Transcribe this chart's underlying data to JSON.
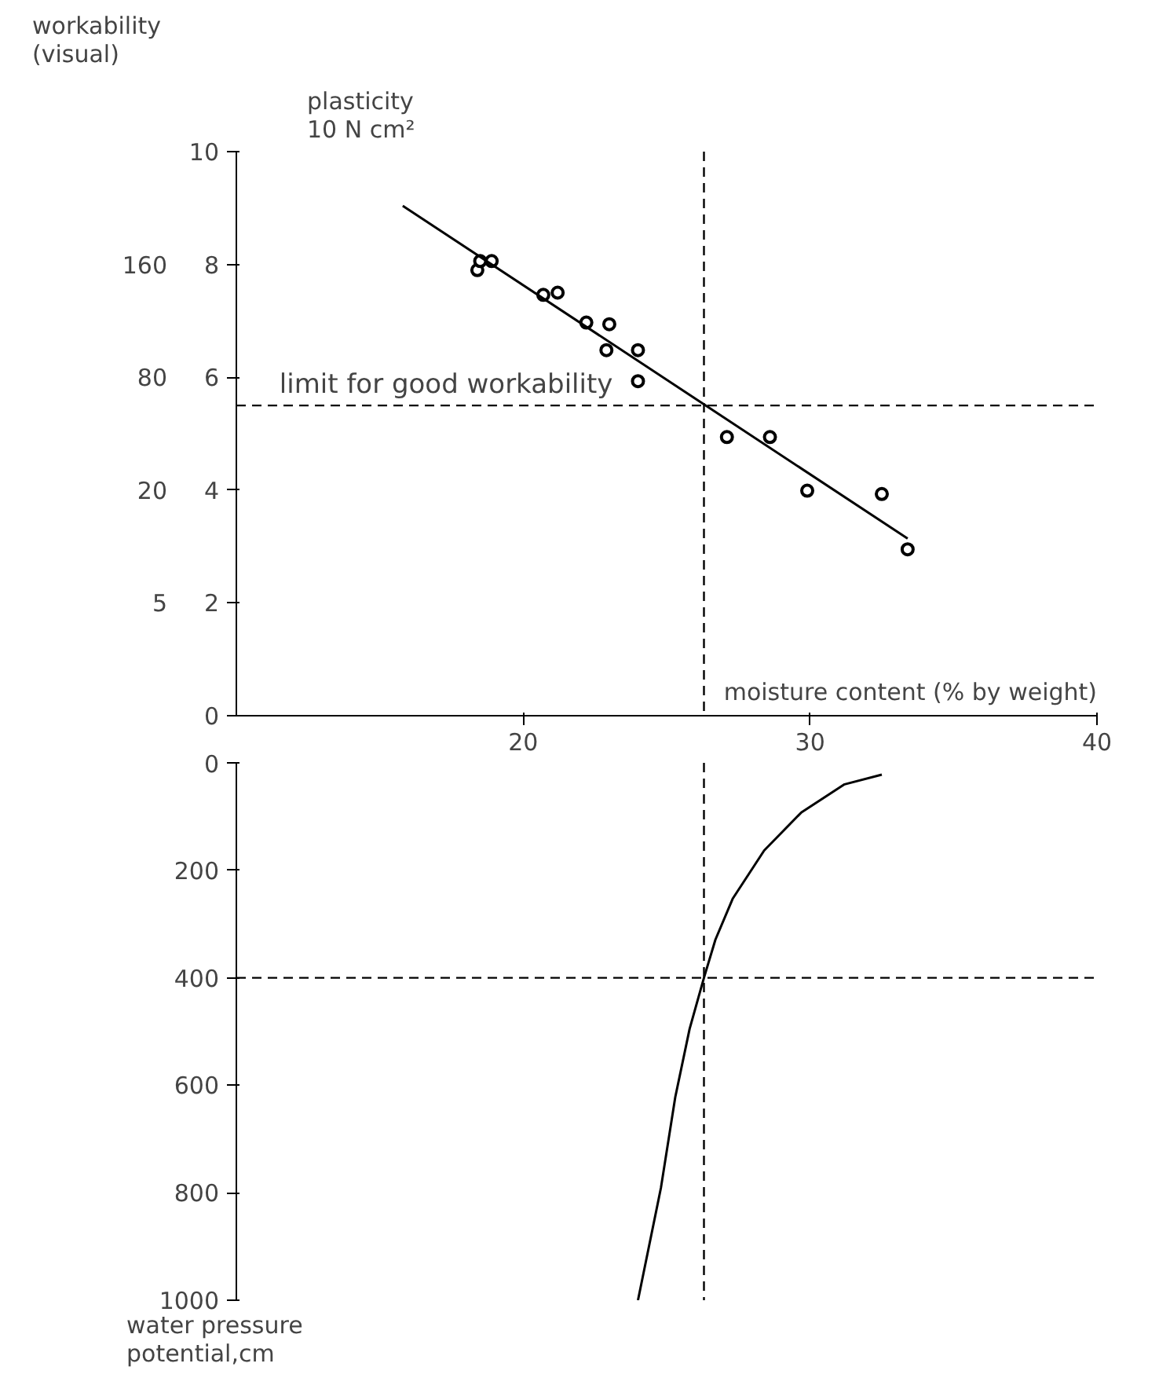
{
  "chart_data": [
    {
      "type": "scatter",
      "ylabel": "workability\n(visual)",
      "y2label": "plasticity\n10 N cm²",
      "xlabel": "moisture content (% by weight)",
      "xlim": [
        10,
        40
      ],
      "xticks": [
        20,
        30,
        40
      ],
      "ylim": [
        0,
        10
      ],
      "yticks": [
        0,
        2,
        4,
        6,
        8,
        10
      ],
      "y2_categories": [
        null,
        "160",
        "80",
        "20",
        "5",
        null
      ],
      "grid": false,
      "series": [
        {
          "type": "scatter",
          "marker": "circle",
          "color": "#000000",
          "x": [
            18.4,
            18.5,
            18.9,
            20.7,
            21.2,
            22.2,
            23.0,
            22.9,
            24.0,
            24.0,
            27.1,
            28.6,
            29.9,
            32.5,
            33.4
          ],
          "values": [
            7.9,
            8.06,
            8.06,
            7.46,
            7.5,
            6.97,
            6.94,
            6.48,
            6.48,
            5.93,
            4.94,
            4.94,
            3.99,
            3.93,
            2.95
          ]
        },
        {
          "type": "line",
          "color": "#000000",
          "x": [
            15.8,
            33.4
          ],
          "values": [
            9.04,
            3.14
          ]
        }
      ],
      "ref_lines": [
        {
          "axis": "y",
          "value": 5.5,
          "label": "limit for good workability",
          "line_style": "dashed"
        },
        {
          "axis": "x",
          "value": 26.3,
          "line_style": "dashed"
        }
      ]
    },
    {
      "type": "line",
      "ylabel": "water pressure\npotential,cm",
      "xlim": [
        10,
        40
      ],
      "ylim": [
        1000,
        0
      ],
      "yticks": [
        0,
        200,
        400,
        600,
        800,
        1000
      ],
      "tick_labels": "y",
      "grid": false,
      "series": [
        {
          "color": "#000000",
          "x": [
            32.5,
            31.2,
            29.7,
            28.4,
            27.3,
            26.7,
            26.3,
            25.8,
            25.3,
            24.8,
            24.0
          ],
          "values": [
            22,
            40,
            92,
            163,
            253,
            329,
            400,
            495,
            622,
            791,
            1000
          ]
        }
      ],
      "ref_lines": [
        {
          "axis": "y",
          "value": 400,
          "line_style": "dashed"
        },
        {
          "axis": "x",
          "value": 26.3,
          "line_style": "dashed"
        }
      ]
    }
  ]
}
